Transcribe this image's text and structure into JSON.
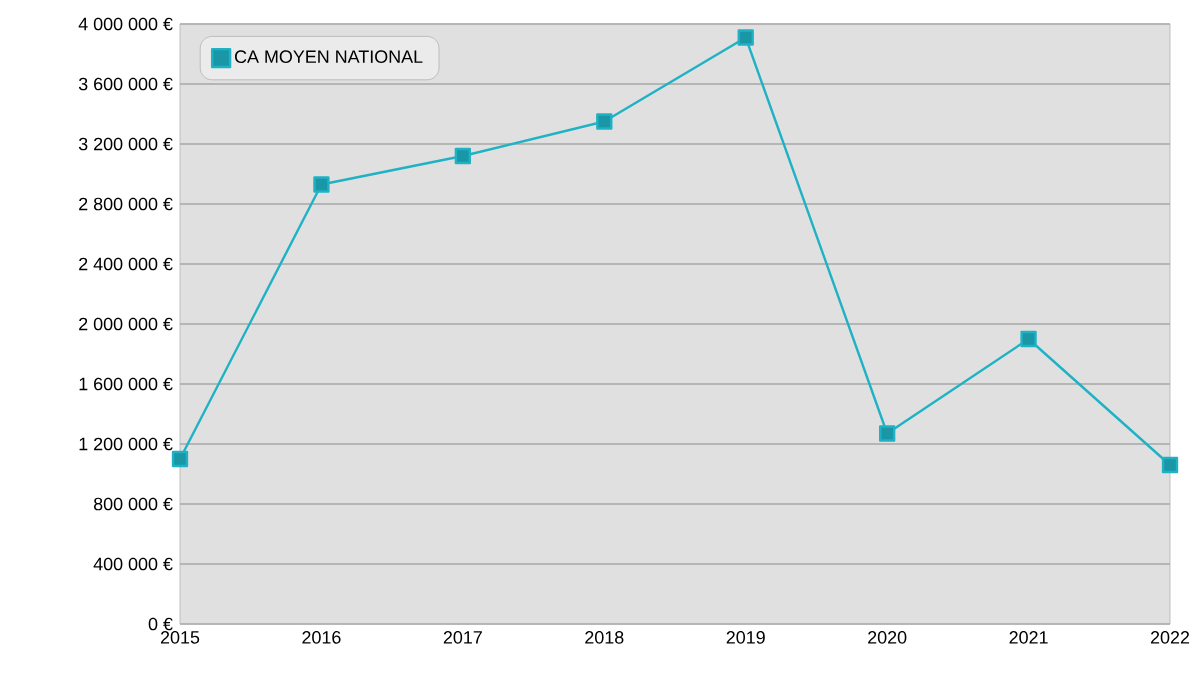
{
  "chart_data": {
    "type": "line",
    "categories": [
      "2015",
      "2016",
      "2017",
      "2018",
      "2019",
      "2020",
      "2021",
      "2022"
    ],
    "series": [
      {
        "name": "CA MOYEN NATIONAL",
        "color": "#1eb2c4",
        "values": [
          1100000,
          2930000,
          3120000,
          3350000,
          3910000,
          1270000,
          1900000,
          1060000
        ]
      }
    ],
    "ylim": [
      0,
      4000000
    ],
    "yticks": [
      {
        "value": 0,
        "label": "0 €"
      },
      {
        "value": 400000,
        "label": "400 000 €"
      },
      {
        "value": 800000,
        "label": "800 000 €"
      },
      {
        "value": 1200000,
        "label": "1 200 000 €"
      },
      {
        "value": 1600000,
        "label": "1 600 000 €"
      },
      {
        "value": 2000000,
        "label": "2 000 000 €"
      },
      {
        "value": 2400000,
        "label": "2 400 000 €"
      },
      {
        "value": 2800000,
        "label": "2 800 000 €"
      },
      {
        "value": 3200000,
        "label": "3 200 000 €"
      },
      {
        "value": 3600000,
        "label": "3 600 000 €"
      },
      {
        "value": 4000000,
        "label": "4 000 000 €"
      }
    ],
    "grid": "y",
    "legend": "top left",
    "marker": "square",
    "line_style": "solid"
  }
}
